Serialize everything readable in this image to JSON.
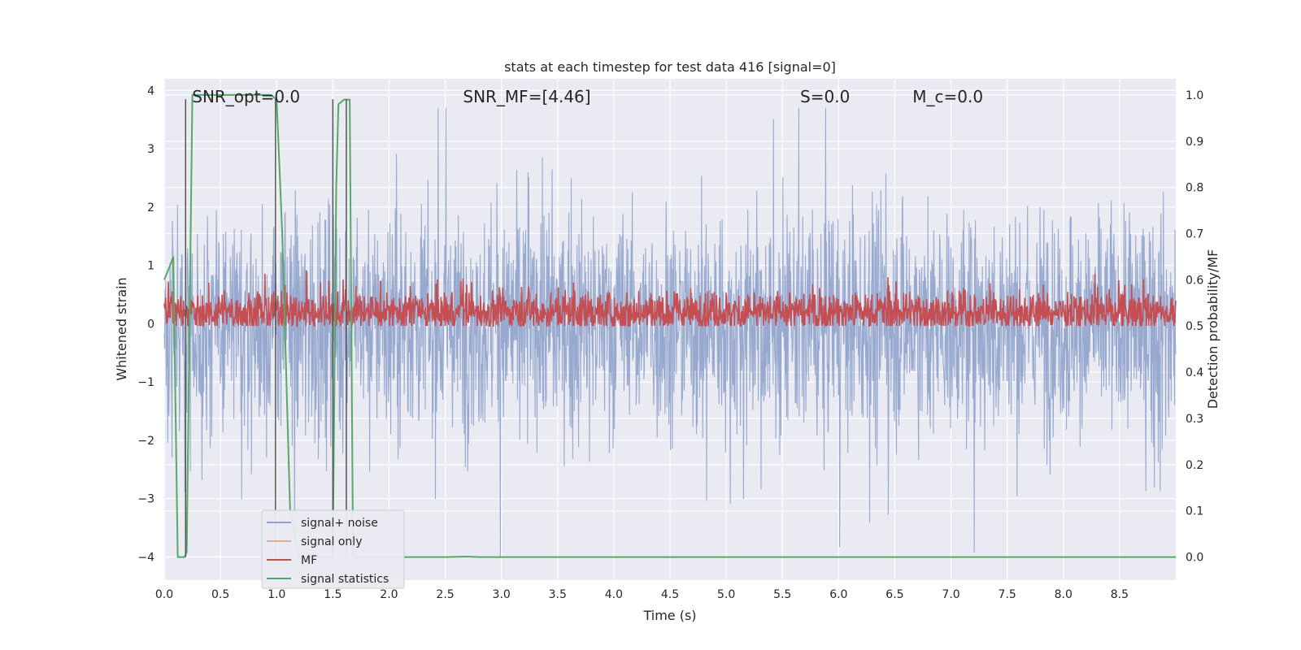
{
  "chart_data": {
    "type": "line",
    "title": "stats at each timestep for test data 416 [signal=0]",
    "xlabel": "Time (s)",
    "ylabel": "Whitened strain",
    "y2label": "Detection probability/MF",
    "xlim": [
      0.0,
      9.0
    ],
    "ylim": [
      -4.4,
      4.2
    ],
    "y2lim": [
      -0.05,
      1.035
    ],
    "grid": true,
    "legend_position": "bottom-left",
    "x_ticks": [
      "0.0",
      "0.5",
      "1.0",
      "1.5",
      "2.0",
      "2.5",
      "3.0",
      "3.5",
      "4.0",
      "4.5",
      "5.0",
      "5.5",
      "6.0",
      "6.5",
      "7.0",
      "7.5",
      "8.0",
      "8.5"
    ],
    "x_tick_values": [
      0.0,
      0.5,
      1.0,
      1.5,
      2.0,
      2.5,
      3.0,
      3.5,
      4.0,
      4.5,
      5.0,
      5.5,
      6.0,
      6.5,
      7.0,
      7.5,
      8.0,
      8.5
    ],
    "y_ticks": [
      "−4",
      "−3",
      "−2",
      "−1",
      "0",
      "1",
      "2",
      "3",
      "4"
    ],
    "y_tick_values": [
      -4,
      -3,
      -2,
      -1,
      0,
      1,
      2,
      3,
      4
    ],
    "y2_ticks": [
      "0.0",
      "0.1",
      "0.2",
      "0.3",
      "0.4",
      "0.5",
      "0.6",
      "0.7",
      "0.8",
      "0.9",
      "1.0"
    ],
    "y2_tick_values": [
      0.0,
      0.1,
      0.2,
      0.3,
      0.4,
      0.5,
      0.6,
      0.7,
      0.8,
      0.9,
      1.0
    ],
    "annotations": [
      {
        "id": "snr-opt",
        "text": "SNR_opt=0.0",
        "x": 0.19
      },
      {
        "id": "snr-mf",
        "text": "SNR_MF=[4.46]",
        "x": 2.6
      },
      {
        "id": "s",
        "text": "S=0.0",
        "x": 5.6
      },
      {
        "id": "mc",
        "text": "M_c=0.0",
        "x": 6.6
      }
    ],
    "vertical_lines_x": [
      0.19,
      0.99,
      1.5,
      1.62
    ],
    "series": [
      {
        "name": "signal+ noise",
        "color": "#8ea2cb",
        "axis": "left",
        "approx_range": [
          -4.0,
          3.7
        ],
        "typical_amplitude": 1.7
      },
      {
        "name": "signal only",
        "color": "#e8a98c",
        "axis": "left",
        "values": []
      },
      {
        "name": "MF",
        "color": "#c44e52",
        "axis": "right",
        "approx_range": [
          0.5,
          0.65
        ],
        "typical_level": 0.53
      },
      {
        "name": "signal statistics",
        "color": "#55a868",
        "axis": "right",
        "x": [
          0.0,
          0.05,
          0.08,
          0.12,
          0.18,
          0.2,
          0.25,
          0.3,
          0.5,
          0.7,
          0.95,
          1.0,
          1.05,
          1.12,
          1.2,
          1.3,
          1.45,
          1.5,
          1.53,
          1.55,
          1.6,
          1.65,
          1.68,
          1.7,
          2.5,
          2.7,
          2.8,
          3.0,
          9.0
        ],
        "values": [
          0.6,
          0.63,
          0.65,
          0.0,
          0.0,
          0.01,
          1.0,
          1.0,
          1.0,
          1.0,
          1.0,
          0.99,
          0.7,
          0.1,
          0.0,
          0.0,
          0.0,
          0.0,
          0.8,
          0.98,
          0.99,
          0.99,
          0.0,
          0.0,
          0.0,
          0.001,
          0.0,
          0.0,
          0.0
        ]
      }
    ]
  }
}
